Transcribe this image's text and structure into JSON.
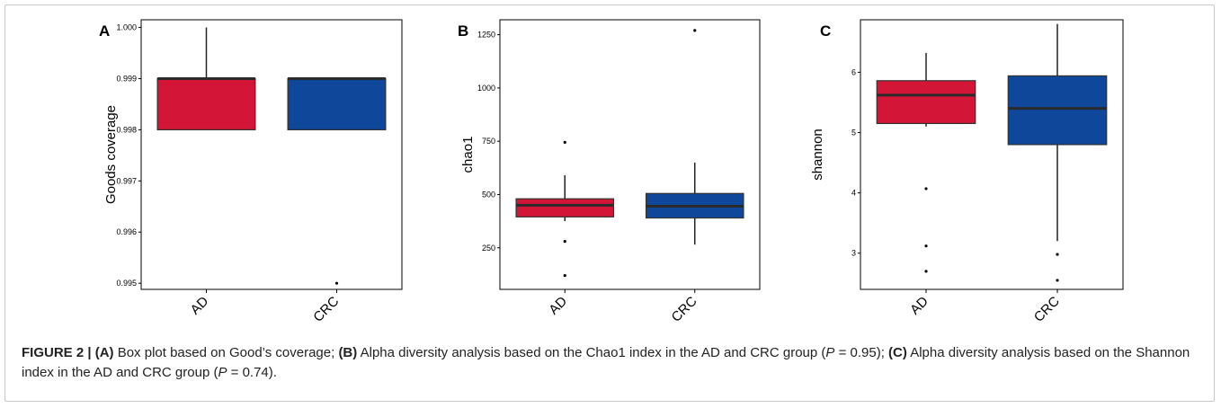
{
  "chart_data": [
    {
      "type": "box",
      "panel_label": "A",
      "ylabel": "Goods coverage",
      "xlabel": "",
      "ylim": [
        0.99488,
        1.00015
      ],
      "yticks": [
        0.995,
        0.996,
        0.997,
        0.998,
        0.999,
        1.0
      ],
      "ytick_labels": [
        "0.995",
        "0.996",
        "0.997",
        "0.998",
        "0.999",
        "1.000"
      ],
      "categories": [
        "AD",
        "CRC"
      ],
      "colors": [
        "#d31638",
        "#0f479b"
      ],
      "boxes": [
        {
          "group": "AD",
          "q1": 0.998,
          "median": 0.999,
          "q3": 0.999,
          "whisker_low": 0.998,
          "whisker_high": 1.0,
          "outliers": []
        },
        {
          "group": "CRC",
          "q1": 0.998,
          "median": 0.999,
          "q3": 0.999,
          "whisker_low": 0.998,
          "whisker_high": 0.999,
          "outliers": [
            0.995
          ]
        }
      ]
    },
    {
      "type": "box",
      "panel_label": "B",
      "ylabel": "chao1",
      "xlabel": "",
      "ylim": [
        55,
        1320
      ],
      "yticks": [
        250,
        500,
        750,
        1000,
        1250
      ],
      "ytick_labels": [
        "250",
        "500",
        "750",
        "1000",
        "1250"
      ],
      "categories": [
        "AD",
        "CRC"
      ],
      "colors": [
        "#d31638",
        "#0f479b"
      ],
      "boxes": [
        {
          "group": "AD",
          "q1": 395,
          "median": 450,
          "q3": 480,
          "whisker_low": 375,
          "whisker_high": 590,
          "outliers": [
            745,
            280,
            120
          ]
        },
        {
          "group": "CRC",
          "q1": 390,
          "median": 445,
          "q3": 505,
          "whisker_low": 265,
          "whisker_high": 650,
          "outliers": [
            1270
          ]
        }
      ]
    },
    {
      "type": "box",
      "panel_label": "C",
      "ylabel": "shannon",
      "xlabel": "",
      "ylim": [
        2.4,
        6.87
      ],
      "yticks": [
        3,
        4,
        5,
        6
      ],
      "ytick_labels": [
        "3",
        "4",
        "5",
        "6"
      ],
      "categories": [
        "AD",
        "CRC"
      ],
      "colors": [
        "#d31638",
        "#0f479b"
      ],
      "boxes": [
        {
          "group": "AD",
          "q1": 5.15,
          "median": 5.62,
          "q3": 5.86,
          "whisker_low": 5.1,
          "whisker_high": 6.32,
          "outliers": [
            4.07,
            3.12,
            2.7
          ]
        },
        {
          "group": "CRC",
          "q1": 4.8,
          "median": 5.4,
          "q3": 5.94,
          "whisker_low": 3.2,
          "whisker_high": 6.8,
          "outliers": [
            2.98,
            2.55
          ]
        }
      ]
    }
  ],
  "caption": {
    "lead": "FIGURE 2 | ",
    "part_a_label": "(A)",
    "part_a_text": " Box plot based on Good’s coverage; ",
    "part_b_label": "(B)",
    "part_b_text": " Alpha diversity analysis based on the Chao1 index in the AD and CRC group (",
    "p_symbol": "P",
    "p_b_value": " = 0.95); ",
    "part_c_label": "(C)",
    "part_c_text": " Alpha diversity analysis based on the Shannon index in the AD and CRC group (",
    "p_c_value": " = 0.74)."
  }
}
